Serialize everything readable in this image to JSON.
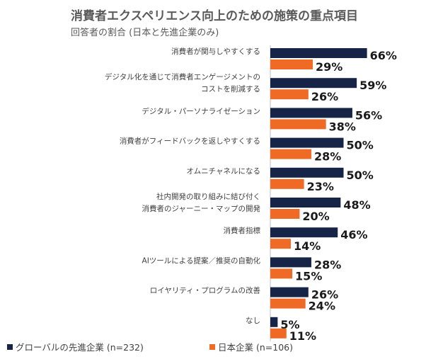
{
  "title": "消費者エクスペリエンス向上のための施策の重点項目",
  "subtitle": "回答者の割合 (日本と先進企業のみ)",
  "colors": {
    "global": "#162447",
    "japan": "#ef6a24"
  },
  "chart_data": {
    "type": "bar",
    "orientation": "horizontal",
    "categories": [
      [
        "消費者が関与しやすくする"
      ],
      [
        "デジタル化を通じて消費者エンゲージメントの",
        "コストを削減する"
      ],
      [
        "デジタル・パーソナライゼーション"
      ],
      [
        "消費者がフィードバックを返しやすくする"
      ],
      [
        "オムニチャネルになる"
      ],
      [
        "社内開発の取り組みに結び付く",
        "消費者のジャーニー・マップの開発"
      ],
      [
        "消費者指標"
      ],
      [
        "AIツールによる提案／推奨の自動化"
      ],
      [
        "ロイヤリティ・プログラムの改善"
      ],
      [
        "なし"
      ]
    ],
    "series": [
      {
        "name": "グローバルの先進企業 (n=232)",
        "values": [
          66,
          59,
          56,
          50,
          50,
          48,
          46,
          28,
          26,
          5
        ]
      },
      {
        "name": "日本企業 (n=106)",
        "values": [
          29,
          26,
          38,
          28,
          23,
          20,
          14,
          15,
          24,
          11
        ]
      }
    ],
    "value_suffix": "%",
    "xlim": [
      0,
      100
    ],
    "legend_position": "bottom"
  }
}
